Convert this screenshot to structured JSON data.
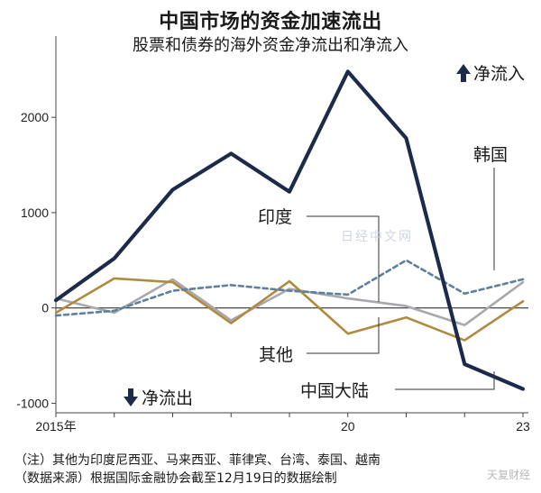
{
  "title": "中国市场的资金加速流出",
  "subtitle": "股票和债券的海外资金净流出和净流入",
  "net_inflow_label": "净流入",
  "net_outflow_label": "净流出",
  "notes": [
    "（注）其他为印度尼西亚、马来西亚、菲律宾、台湾、泰国、越南",
    "（数据来源）根据国际金融协会截至12月19日的数据绘制"
  ],
  "watermark": "天复财经",
  "watermark_publisher": "日经中文网",
  "colors": {
    "china": "#1c2b4a",
    "korea": "#5e7f9e",
    "india": "#a8a8ae",
    "other": "#b08a3e"
  },
  "chart_data": {
    "type": "line",
    "x_labels": [
      "2015年",
      "20",
      "23"
    ],
    "x": [
      2015,
      2016,
      2017,
      2018,
      2019,
      2020,
      2021,
      2022,
      2023
    ],
    "yticks": [
      2000,
      1000,
      0,
      -1000
    ],
    "ylim": [
      -1100,
      2550
    ],
    "series": [
      {
        "name": "中国大陆",
        "values": [
          80,
          520,
          1240,
          1620,
          1220,
          2480,
          1780,
          -590,
          -850
        ],
        "style": "solid-thick",
        "color": "#1c2b4a"
      },
      {
        "name": "韩国",
        "values": [
          -80,
          -30,
          180,
          240,
          180,
          140,
          500,
          150,
          300
        ],
        "style": "dashed",
        "color": "#5e7f9e"
      },
      {
        "name": "印度",
        "values": [
          100,
          -50,
          300,
          -130,
          200,
          100,
          20,
          -180,
          270
        ],
        "style": "solid",
        "color": "#a8a8ae"
      },
      {
        "name": "其他",
        "values": [
          -50,
          310,
          270,
          -160,
          280,
          -270,
          -100,
          -340,
          70
        ],
        "style": "solid",
        "color": "#b08a3e"
      }
    ]
  }
}
